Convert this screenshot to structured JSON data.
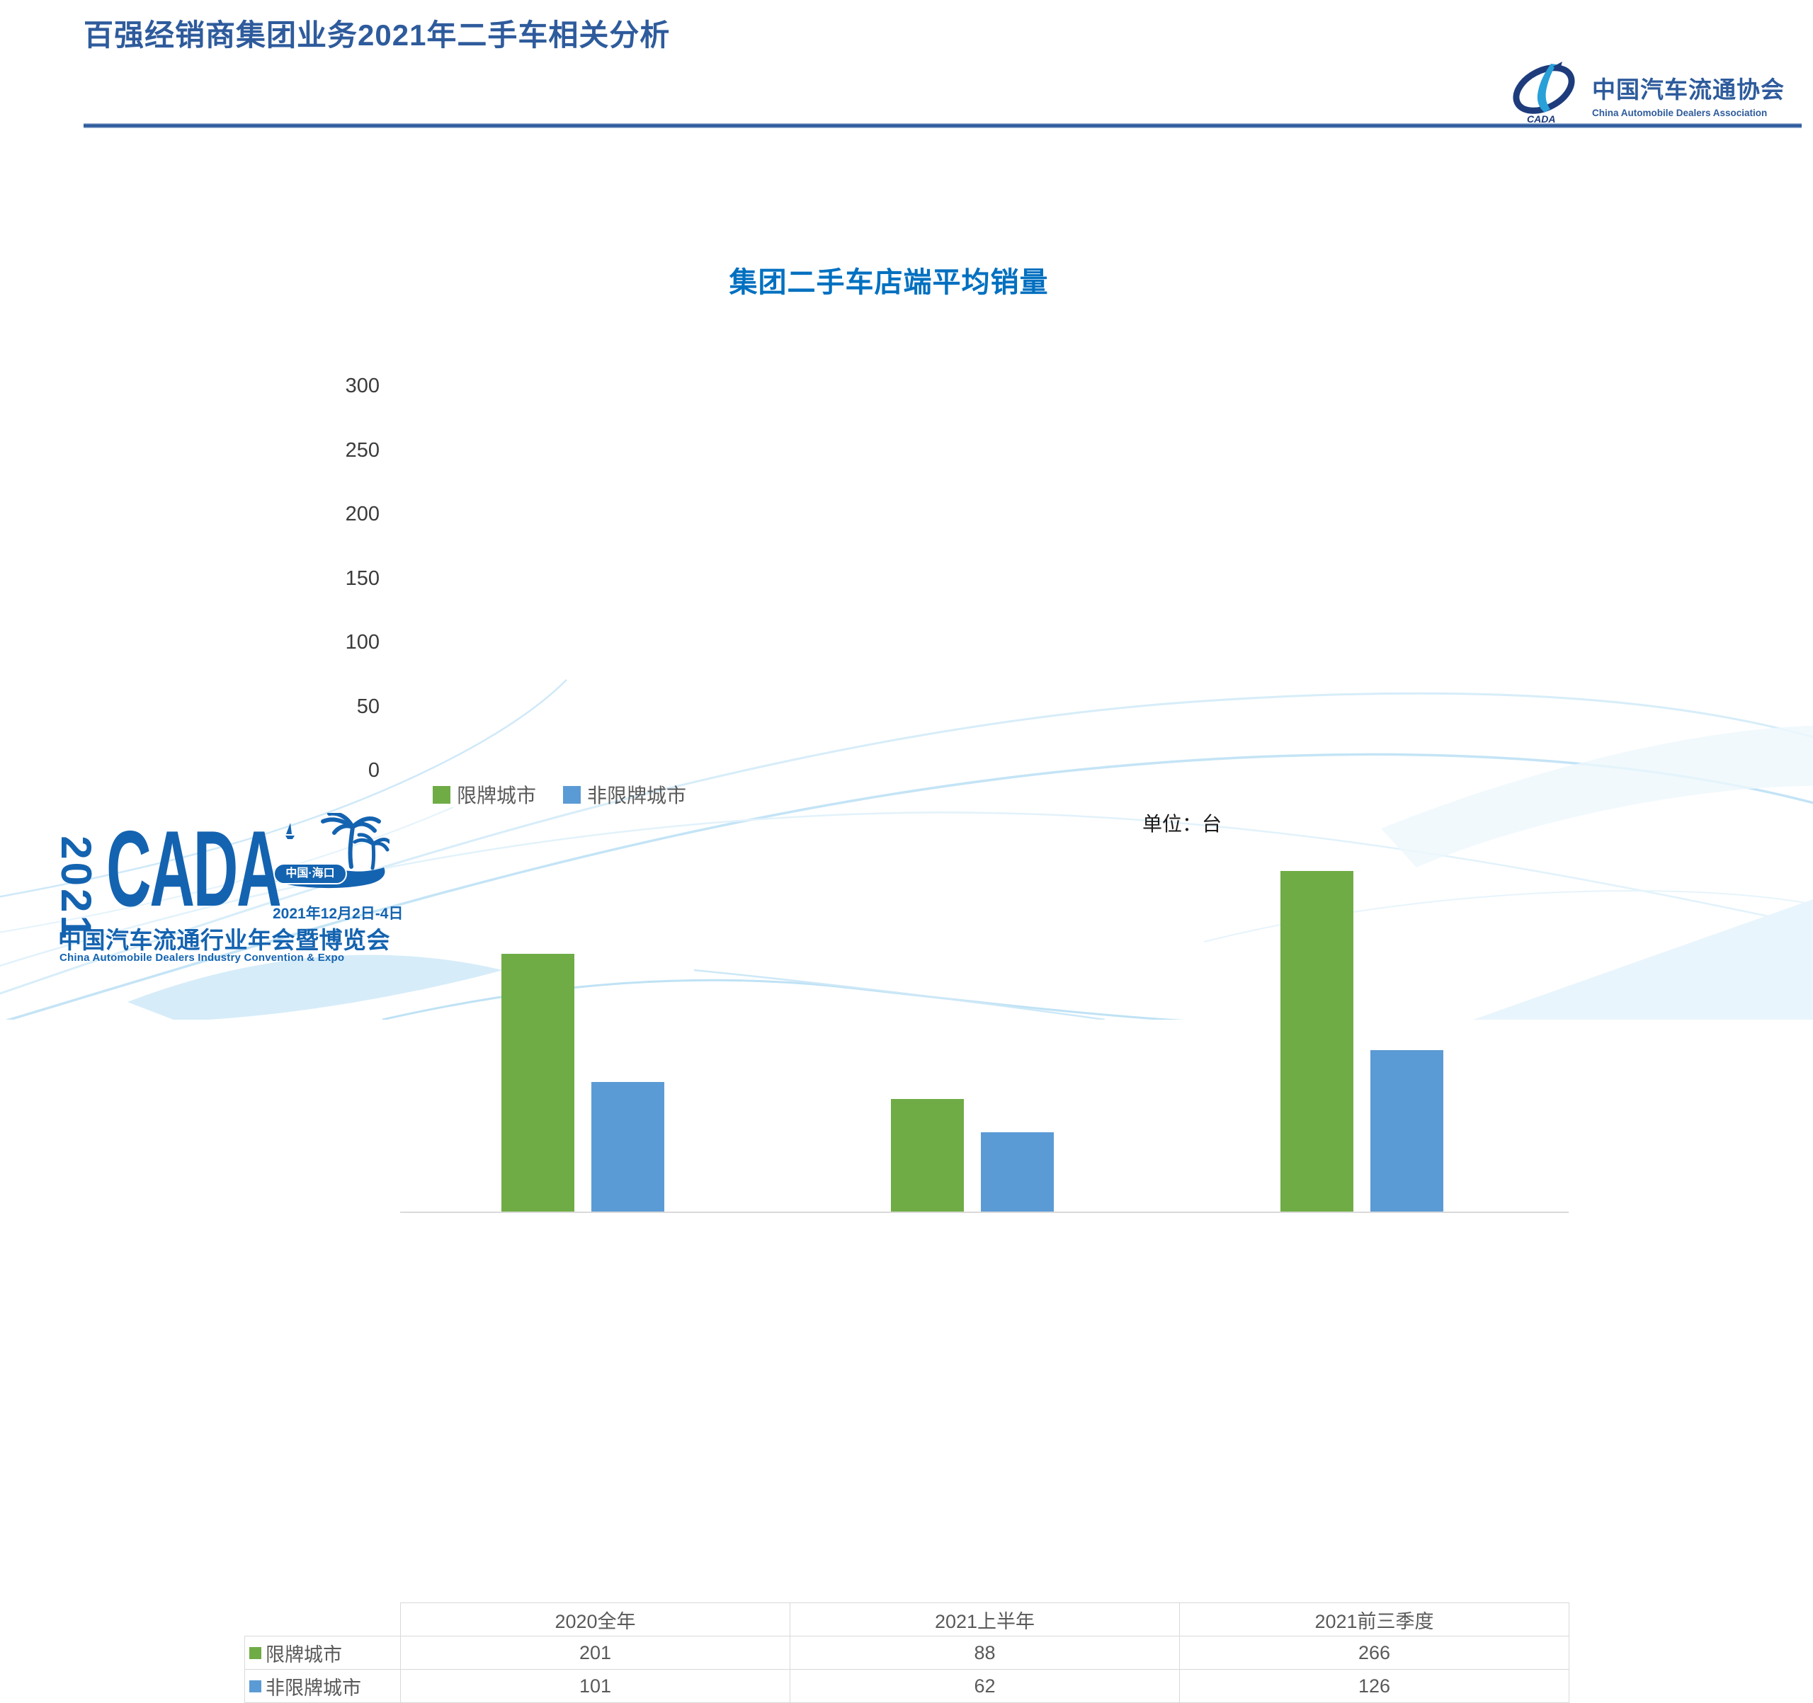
{
  "slide": {
    "title": "百强经销商集团业务2021年二手车相关分析"
  },
  "org": {
    "name_cn": "中国汽车流通协会",
    "name_en": "China Automobile Dealers Association",
    "emblem_text": "CADA"
  },
  "chart_data": {
    "type": "bar",
    "title": "集团二手车店端平均销量",
    "unit_label": "单位：台",
    "categories": [
      "2020全年",
      "2021上半年",
      "2021前三季度"
    ],
    "series": [
      {
        "name": "限牌城市",
        "color": "#6FAC46",
        "values": [
          201,
          88,
          266
        ]
      },
      {
        "name": "非限牌城市",
        "color": "#5B9BD5",
        "values": [
          101,
          62,
          126
        ]
      }
    ],
    "ylim": [
      0,
      300
    ],
    "yticks": [
      300,
      250,
      200,
      150,
      100,
      50,
      0
    ],
    "grid": false,
    "legend_position": "top-left",
    "data_table_shown": true
  },
  "event": {
    "year_vertical": "2021",
    "acronym": "CADA",
    "location_badge": "中国·海口",
    "dates": "2021年12月2日-4日",
    "name_cn": "中国汽车流通行业年会暨博览会",
    "name_en": "China Automobile Dealers Industry Convention & Expo"
  },
  "colors": {
    "header_blue": "#2E5B9C",
    "chart_title_blue": "#0070C0",
    "series_green": "#6FAC46",
    "series_blue": "#5B9BD5",
    "event_logo_blue": "#1463B0",
    "table_border": "#D9D9D9",
    "table_text": "#595959"
  }
}
